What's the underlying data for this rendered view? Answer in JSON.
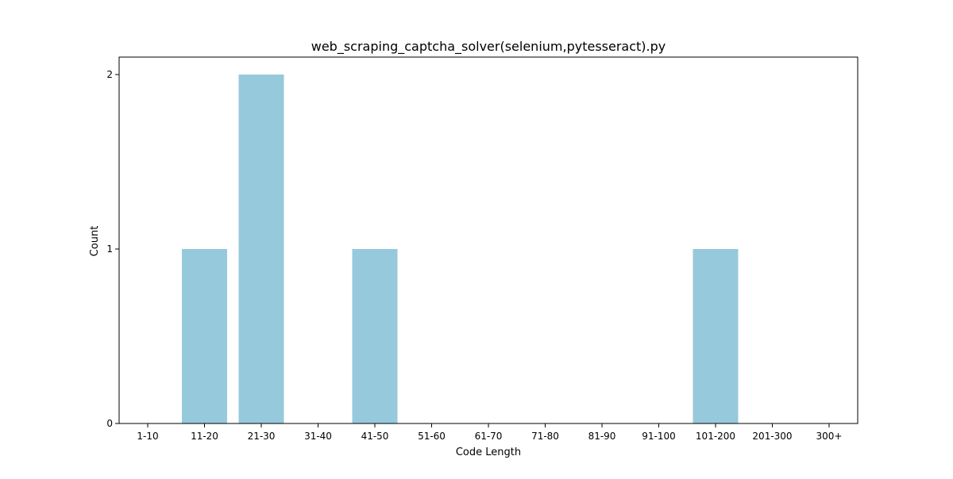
{
  "chart_data": {
    "type": "bar",
    "title": "web_scraping_captcha_solver(selenium,pytesseract).py",
    "xlabel": "Code Length",
    "ylabel": "Count",
    "categories": [
      "1-10",
      "11-20",
      "21-30",
      "31-40",
      "41-50",
      "51-60",
      "61-70",
      "71-80",
      "81-90",
      "91-100",
      "101-200",
      "201-300",
      "300+"
    ],
    "values": [
      0,
      1,
      2,
      0,
      1,
      0,
      0,
      0,
      0,
      0,
      1,
      0,
      0
    ],
    "yticks": [
      "0",
      "1",
      "2"
    ],
    "ylim": [
      0,
      2.1
    ],
    "bar_color": "#96c9dc",
    "grid": false,
    "legend": "none"
  }
}
